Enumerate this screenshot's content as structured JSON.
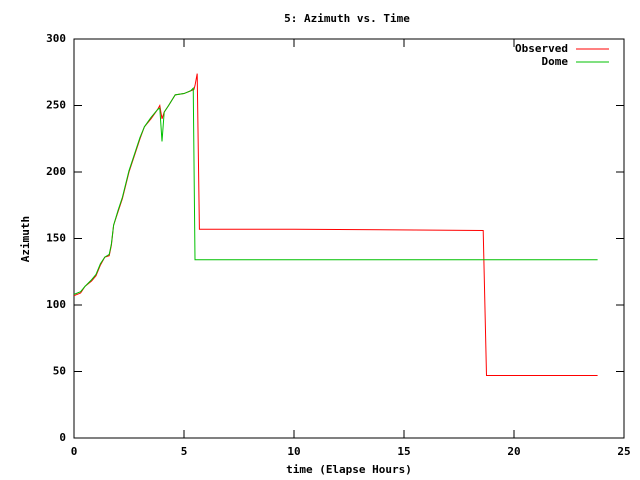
{
  "chart_data": {
    "type": "line",
    "title": "5: Azimuth vs. Time",
    "x_label": "time (Elapse Hours)",
    "y_label": "Azimuth",
    "xlim": [
      0,
      25
    ],
    "xticks": [
      0,
      5,
      10,
      15,
      20,
      25
    ],
    "ylim": [
      0,
      300
    ],
    "yticks": [
      0,
      50,
      100,
      150,
      200,
      250,
      300
    ],
    "legend": "top-right",
    "series": [
      {
        "name": "Observed",
        "color": "#ff0000",
        "x": [
          0,
          0.3,
          0.5,
          0.8,
          1.0,
          1.2,
          1.4,
          1.6,
          1.7,
          1.8,
          2.0,
          2.2,
          2.5,
          2.8,
          3.0,
          3.2,
          3.5,
          3.8,
          3.9,
          4.0,
          4.1,
          4.3,
          4.6,
          5.0,
          5.3,
          5.45,
          5.5,
          5.6,
          5.7,
          10,
          18.6,
          18.75,
          23.8
        ],
        "values": [
          107,
          109,
          114,
          118,
          122,
          130,
          136,
          137,
          145,
          160,
          170,
          180,
          200,
          215,
          225,
          234,
          240,
          247,
          250,
          240,
          245,
          250,
          258,
          259,
          261,
          262,
          265,
          274,
          157,
          157,
          156,
          47,
          47
        ]
      },
      {
        "name": "Dome",
        "color": "#00c000",
        "x": [
          0,
          0.3,
          0.5,
          0.8,
          1.0,
          1.2,
          1.4,
          1.6,
          1.7,
          1.8,
          2.0,
          2.2,
          2.5,
          2.8,
          3.0,
          3.2,
          3.5,
          3.8,
          3.9,
          4.0,
          4.1,
          4.3,
          4.6,
          5.0,
          5.3,
          5.42,
          5.5,
          23.8
        ],
        "values": [
          108,
          110,
          114,
          119,
          123,
          131,
          136,
          138,
          146,
          160,
          171,
          181,
          201,
          216,
          226,
          234,
          241,
          247,
          248,
          223,
          245,
          250,
          258,
          259,
          261,
          263,
          134,
          134
        ]
      }
    ]
  }
}
